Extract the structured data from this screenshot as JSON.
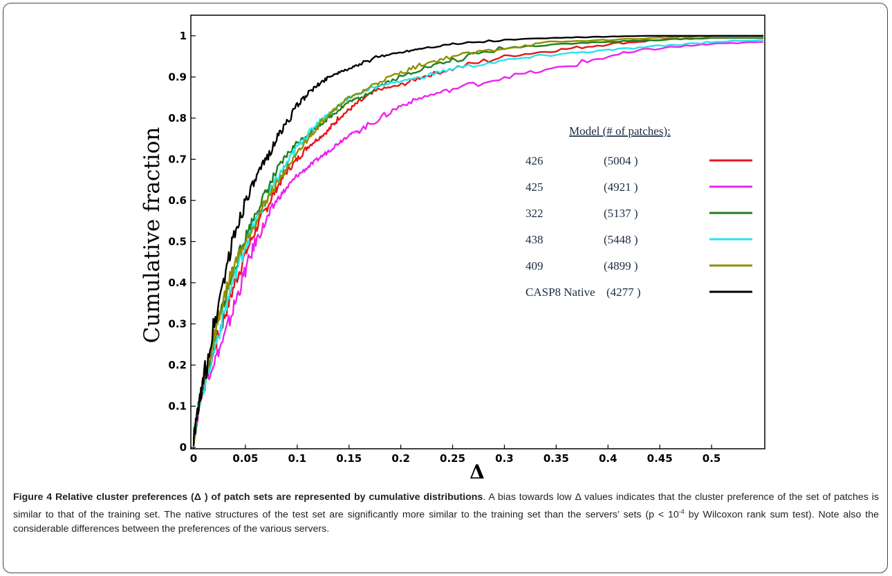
{
  "chart_data": {
    "type": "line",
    "xlabel": "Δ",
    "ylabel": "Cumulative fraction",
    "xlim": [
      0,
      0.55
    ],
    "ylim": [
      0,
      1.05
    ],
    "x_ticks": [
      "0",
      "0.05",
      "0.1",
      "0.15",
      "0.2",
      "0.25",
      "0.3",
      "0.35",
      "0.4",
      "0.45",
      "0.5"
    ],
    "y_ticks": [
      "0",
      "0.1",
      "0.2",
      "0.3",
      "0.4",
      "0.5",
      "0.6",
      "0.7",
      "0.8",
      "0.9",
      "1"
    ],
    "legend_title": "Model (# of patches):",
    "legend_position": "right",
    "series": [
      {
        "name": "426",
        "count": "(5004 )",
        "color": "#e8141b",
        "x": [
          0,
          0.005,
          0.01,
          0.02,
          0.03,
          0.04,
          0.05,
          0.06,
          0.07,
          0.08,
          0.09,
          0.1,
          0.11,
          0.12,
          0.13,
          0.14,
          0.15,
          0.16,
          0.18,
          0.2,
          0.22,
          0.25,
          0.3,
          0.35,
          0.4,
          0.45,
          0.5,
          0.55
        ],
        "y": [
          0.02,
          0.1,
          0.15,
          0.24,
          0.32,
          0.4,
          0.47,
          0.53,
          0.58,
          0.63,
          0.67,
          0.7,
          0.73,
          0.75,
          0.77,
          0.8,
          0.82,
          0.84,
          0.87,
          0.88,
          0.9,
          0.92,
          0.95,
          0.965,
          0.98,
          0.99,
          0.995,
          0.995
        ]
      },
      {
        "name": "425",
        "count": "(4921 )",
        "color": "#ee22ee",
        "x": [
          0,
          0.005,
          0.01,
          0.02,
          0.03,
          0.04,
          0.05,
          0.06,
          0.07,
          0.08,
          0.09,
          0.1,
          0.11,
          0.12,
          0.13,
          0.14,
          0.15,
          0.16,
          0.18,
          0.2,
          0.22,
          0.25,
          0.3,
          0.35,
          0.4,
          0.45,
          0.5,
          0.55
        ],
        "y": [
          0.02,
          0.1,
          0.15,
          0.21,
          0.27,
          0.35,
          0.43,
          0.5,
          0.55,
          0.6,
          0.63,
          0.66,
          0.68,
          0.7,
          0.72,
          0.74,
          0.76,
          0.77,
          0.8,
          0.83,
          0.85,
          0.87,
          0.9,
          0.92,
          0.95,
          0.97,
          0.98,
          0.985
        ]
      },
      {
        "name": "322",
        "count": "(5137 )",
        "color": "#1f7f1f",
        "x": [
          0,
          0.005,
          0.01,
          0.02,
          0.03,
          0.04,
          0.05,
          0.06,
          0.07,
          0.08,
          0.09,
          0.1,
          0.11,
          0.12,
          0.13,
          0.14,
          0.15,
          0.16,
          0.18,
          0.2,
          0.22,
          0.25,
          0.3,
          0.35,
          0.4,
          0.45,
          0.5,
          0.55
        ],
        "y": [
          0.02,
          0.1,
          0.16,
          0.26,
          0.36,
          0.44,
          0.51,
          0.57,
          0.62,
          0.67,
          0.71,
          0.74,
          0.76,
          0.78,
          0.8,
          0.82,
          0.84,
          0.85,
          0.88,
          0.9,
          0.92,
          0.94,
          0.97,
          0.98,
          0.985,
          0.99,
          0.995,
          0.995
        ]
      },
      {
        "name": "438",
        "count": "(5448 )",
        "color": "#22e6ee",
        "x": [
          0,
          0.005,
          0.01,
          0.02,
          0.03,
          0.04,
          0.05,
          0.06,
          0.07,
          0.08,
          0.09,
          0.1,
          0.11,
          0.12,
          0.13,
          0.14,
          0.15,
          0.16,
          0.18,
          0.2,
          0.22,
          0.25,
          0.3,
          0.35,
          0.4,
          0.45,
          0.5,
          0.55
        ],
        "y": [
          0.02,
          0.1,
          0.15,
          0.24,
          0.33,
          0.42,
          0.49,
          0.55,
          0.6,
          0.65,
          0.69,
          0.73,
          0.76,
          0.79,
          0.81,
          0.83,
          0.85,
          0.86,
          0.88,
          0.89,
          0.9,
          0.92,
          0.94,
          0.955,
          0.965,
          0.975,
          0.985,
          0.99
        ]
      },
      {
        "name": "409",
        "count": "(4899 )",
        "color": "#8f8f00",
        "x": [
          0,
          0.005,
          0.01,
          0.02,
          0.03,
          0.04,
          0.05,
          0.06,
          0.07,
          0.08,
          0.09,
          0.1,
          0.11,
          0.12,
          0.13,
          0.14,
          0.15,
          0.16,
          0.18,
          0.2,
          0.22,
          0.25,
          0.3,
          0.35,
          0.4,
          0.45,
          0.5,
          0.55
        ],
        "y": [
          0.02,
          0.1,
          0.16,
          0.27,
          0.37,
          0.45,
          0.5,
          0.55,
          0.6,
          0.64,
          0.68,
          0.71,
          0.75,
          0.78,
          0.81,
          0.83,
          0.85,
          0.86,
          0.89,
          0.91,
          0.93,
          0.95,
          0.97,
          0.985,
          0.99,
          0.995,
          1.0,
          1.0
        ]
      },
      {
        "name": "CASP8 Native",
        "count": "(4277 )",
        "color": "#000000",
        "x": [
          0,
          0.005,
          0.01,
          0.02,
          0.03,
          0.04,
          0.05,
          0.06,
          0.07,
          0.08,
          0.09,
          0.1,
          0.11,
          0.12,
          0.13,
          0.14,
          0.15,
          0.16,
          0.18,
          0.2,
          0.22,
          0.25,
          0.3,
          0.35,
          0.4,
          0.45,
          0.5,
          0.55
        ],
        "y": [
          0.02,
          0.1,
          0.17,
          0.3,
          0.42,
          0.52,
          0.6,
          0.65,
          0.7,
          0.75,
          0.79,
          0.83,
          0.86,
          0.88,
          0.9,
          0.91,
          0.92,
          0.93,
          0.95,
          0.96,
          0.97,
          0.98,
          0.99,
          0.995,
          0.998,
          1.0,
          1.0,
          1.0
        ]
      }
    ]
  },
  "caption": {
    "title": "Figure 4 Relative cluster preferences (Δ ) of patch sets are represented by cumulative distributions",
    "text_before_sup": ". A bias towards low Δ values indicates that the cluster preference of the set of patches is similar to that of the training set. The native structures of the test set are significantly more similar to the training set than the servers’ sets (p < 10",
    "sup": "-4",
    "text_after_sup": " by Wilcoxon rank sum test). Note also the considerable differences between the preferences of the various servers."
  }
}
